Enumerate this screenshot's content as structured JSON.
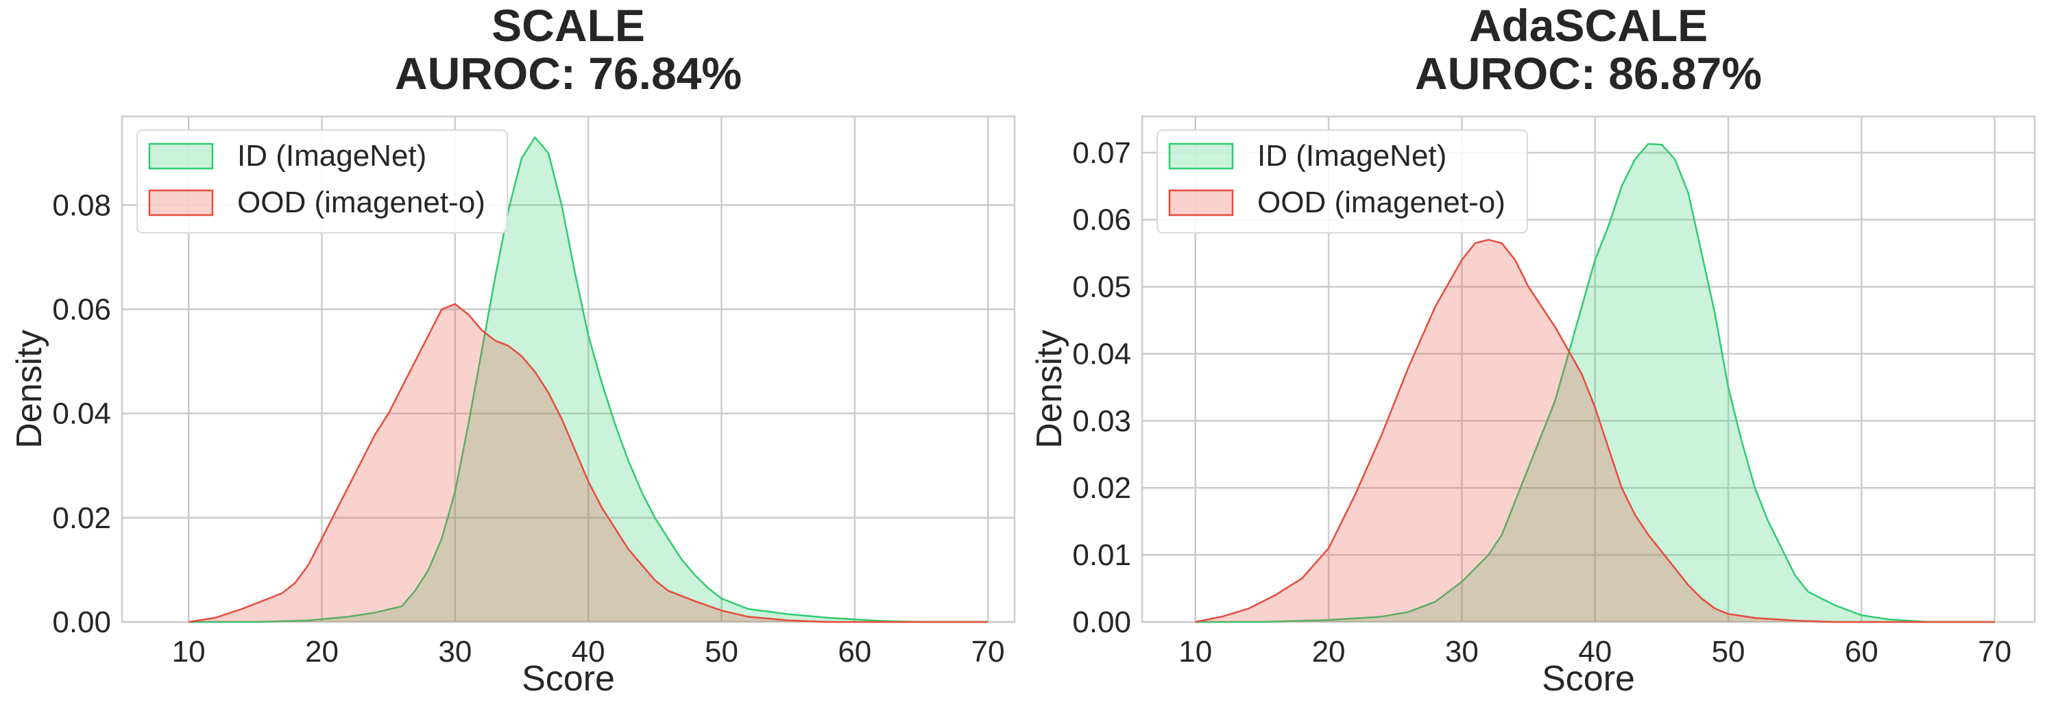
{
  "chart_data": [
    {
      "type": "area",
      "title": "SCALE",
      "subtitle": "AUROC: 76.84%",
      "xlabel": "Score",
      "ylabel": "Density",
      "xlim": [
        5,
        72
      ],
      "ylim": [
        0,
        0.097
      ],
      "xticks": [
        10,
        20,
        30,
        40,
        50,
        60,
        70
      ],
      "yticks": [
        0.0,
        0.02,
        0.04,
        0.06,
        0.08
      ],
      "ytick_labels": [
        "0.00",
        "0.02",
        "0.04",
        "0.06",
        "0.08"
      ],
      "grid": true,
      "legend_position": "top-left",
      "series": [
        {
          "name": "ID (ImageNet)",
          "color": "#2ecc71",
          "points": [
            [
              10,
              0
            ],
            [
              15,
              0
            ],
            [
              19,
              0.0003
            ],
            [
              22,
              0.001
            ],
            [
              24,
              0.0018
            ],
            [
              26,
              0.003
            ],
            [
              27,
              0.006
            ],
            [
              28,
              0.01
            ],
            [
              29,
              0.016
            ],
            [
              30,
              0.025
            ],
            [
              31,
              0.038
            ],
            [
              32,
              0.052
            ],
            [
              33,
              0.066
            ],
            [
              34,
              0.079
            ],
            [
              35,
              0.089
            ],
            [
              36,
              0.093
            ],
            [
              37,
              0.09
            ],
            [
              38,
              0.08
            ],
            [
              39,
              0.067
            ],
            [
              40,
              0.055
            ],
            [
              41,
              0.046
            ],
            [
              42,
              0.038
            ],
            [
              43,
              0.031
            ],
            [
              44,
              0.025
            ],
            [
              45,
              0.02
            ],
            [
              46,
              0.016
            ],
            [
              47,
              0.012
            ],
            [
              48,
              0.009
            ],
            [
              49,
              0.0065
            ],
            [
              50,
              0.0045
            ],
            [
              52,
              0.0025
            ],
            [
              55,
              0.0015
            ],
            [
              58,
              0.0008
            ],
            [
              62,
              0.0002
            ],
            [
              65,
              0
            ],
            [
              70,
              0
            ]
          ]
        },
        {
          "name": "OOD (imagenet-o)",
          "color": "#e74c3c",
          "points": [
            [
              10,
              0
            ],
            [
              12,
              0.0008
            ],
            [
              14,
              0.0025
            ],
            [
              16,
              0.0045
            ],
            [
              17,
              0.0055
            ],
            [
              18,
              0.0075
            ],
            [
              19,
              0.011
            ],
            [
              20,
              0.016
            ],
            [
              22,
              0.026
            ],
            [
              24,
              0.036
            ],
            [
              25,
              0.04
            ],
            [
              26,
              0.045
            ],
            [
              27,
              0.05
            ],
            [
              28,
              0.055
            ],
            [
              29,
              0.06
            ],
            [
              30,
              0.061
            ],
            [
              31,
              0.059
            ],
            [
              32,
              0.056
            ],
            [
              33,
              0.054
            ],
            [
              34,
              0.053
            ],
            [
              35,
              0.051
            ],
            [
              36,
              0.048
            ],
            [
              37,
              0.044
            ],
            [
              38,
              0.039
            ],
            [
              39,
              0.033
            ],
            [
              40,
              0.027
            ],
            [
              41,
              0.022
            ],
            [
              42,
              0.018
            ],
            [
              43,
              0.014
            ],
            [
              44,
              0.011
            ],
            [
              45,
              0.008
            ],
            [
              46,
              0.006
            ],
            [
              48,
              0.004
            ],
            [
              50,
              0.0022
            ],
            [
              52,
              0.001
            ],
            [
              55,
              0.0003
            ],
            [
              58,
              0
            ],
            [
              70,
              0
            ]
          ]
        }
      ]
    },
    {
      "type": "area",
      "title": "AdaSCALE",
      "subtitle": "AUROC: 86.87%",
      "xlabel": "Score",
      "ylabel": "Density",
      "xlim": [
        6,
        73
      ],
      "ylim": [
        0,
        0.0754
      ],
      "xticks": [
        10,
        20,
        30,
        40,
        50,
        60,
        70
      ],
      "yticks": [
        0.0,
        0.01,
        0.02,
        0.03,
        0.04,
        0.05,
        0.06,
        0.07
      ],
      "ytick_labels": [
        "0.00",
        "0.01",
        "0.02",
        "0.03",
        "0.04",
        "0.05",
        "0.06",
        "0.07"
      ],
      "grid": true,
      "legend_position": "top-left",
      "series": [
        {
          "name": "ID (ImageNet)",
          "color": "#2ecc71",
          "points": [
            [
              10,
              0
            ],
            [
              15,
              0
            ],
            [
              20,
              0.0003
            ],
            [
              24,
              0.0008
            ],
            [
              26,
              0.0015
            ],
            [
              28,
              0.003
            ],
            [
              30,
              0.006
            ],
            [
              32,
              0.01
            ],
            [
              33,
              0.013
            ],
            [
              34,
              0.018
            ],
            [
              35,
              0.023
            ],
            [
              36,
              0.028
            ],
            [
              37,
              0.033
            ],
            [
              38,
              0.04
            ],
            [
              39,
              0.047
            ],
            [
              40,
              0.054
            ],
            [
              41,
              0.059
            ],
            [
              42,
              0.065
            ],
            [
              43,
              0.069
            ],
            [
              44,
              0.0713
            ],
            [
              45,
              0.0712
            ],
            [
              46,
              0.069
            ],
            [
              47,
              0.064
            ],
            [
              48,
              0.055
            ],
            [
              49,
              0.046
            ],
            [
              50,
              0.035
            ],
            [
              51,
              0.027
            ],
            [
              52,
              0.02
            ],
            [
              53,
              0.015
            ],
            [
              54,
              0.011
            ],
            [
              55,
              0.007
            ],
            [
              56,
              0.0045
            ],
            [
              58,
              0.0025
            ],
            [
              60,
              0.001
            ],
            [
              62,
              0.0004
            ],
            [
              65,
              0
            ],
            [
              70,
              0
            ]
          ]
        },
        {
          "name": "OOD (imagenet-o)",
          "color": "#e74c3c",
          "points": [
            [
              10,
              0
            ],
            [
              12,
              0.0008
            ],
            [
              14,
              0.002
            ],
            [
              16,
              0.004
            ],
            [
              18,
              0.0065
            ],
            [
              20,
              0.011
            ],
            [
              22,
              0.019
            ],
            [
              24,
              0.028
            ],
            [
              26,
              0.038
            ],
            [
              28,
              0.047
            ],
            [
              30,
              0.054
            ],
            [
              31,
              0.0565
            ],
            [
              32,
              0.057
            ],
            [
              33,
              0.0565
            ],
            [
              34,
              0.054
            ],
            [
              35,
              0.05
            ],
            [
              36,
              0.047
            ],
            [
              37,
              0.044
            ],
            [
              38,
              0.0405
            ],
            [
              39,
              0.037
            ],
            [
              40,
              0.032
            ],
            [
              41,
              0.026
            ],
            [
              42,
              0.02
            ],
            [
              43,
              0.016
            ],
            [
              44,
              0.013
            ],
            [
              45,
              0.0105
            ],
            [
              46,
              0.008
            ],
            [
              47,
              0.0055
            ],
            [
              48,
              0.0035
            ],
            [
              49,
              0.002
            ],
            [
              50,
              0.0012
            ],
            [
              52,
              0.0006
            ],
            [
              55,
              0.0002
            ],
            [
              58,
              0
            ],
            [
              70,
              0
            ]
          ]
        }
      ]
    }
  ]
}
